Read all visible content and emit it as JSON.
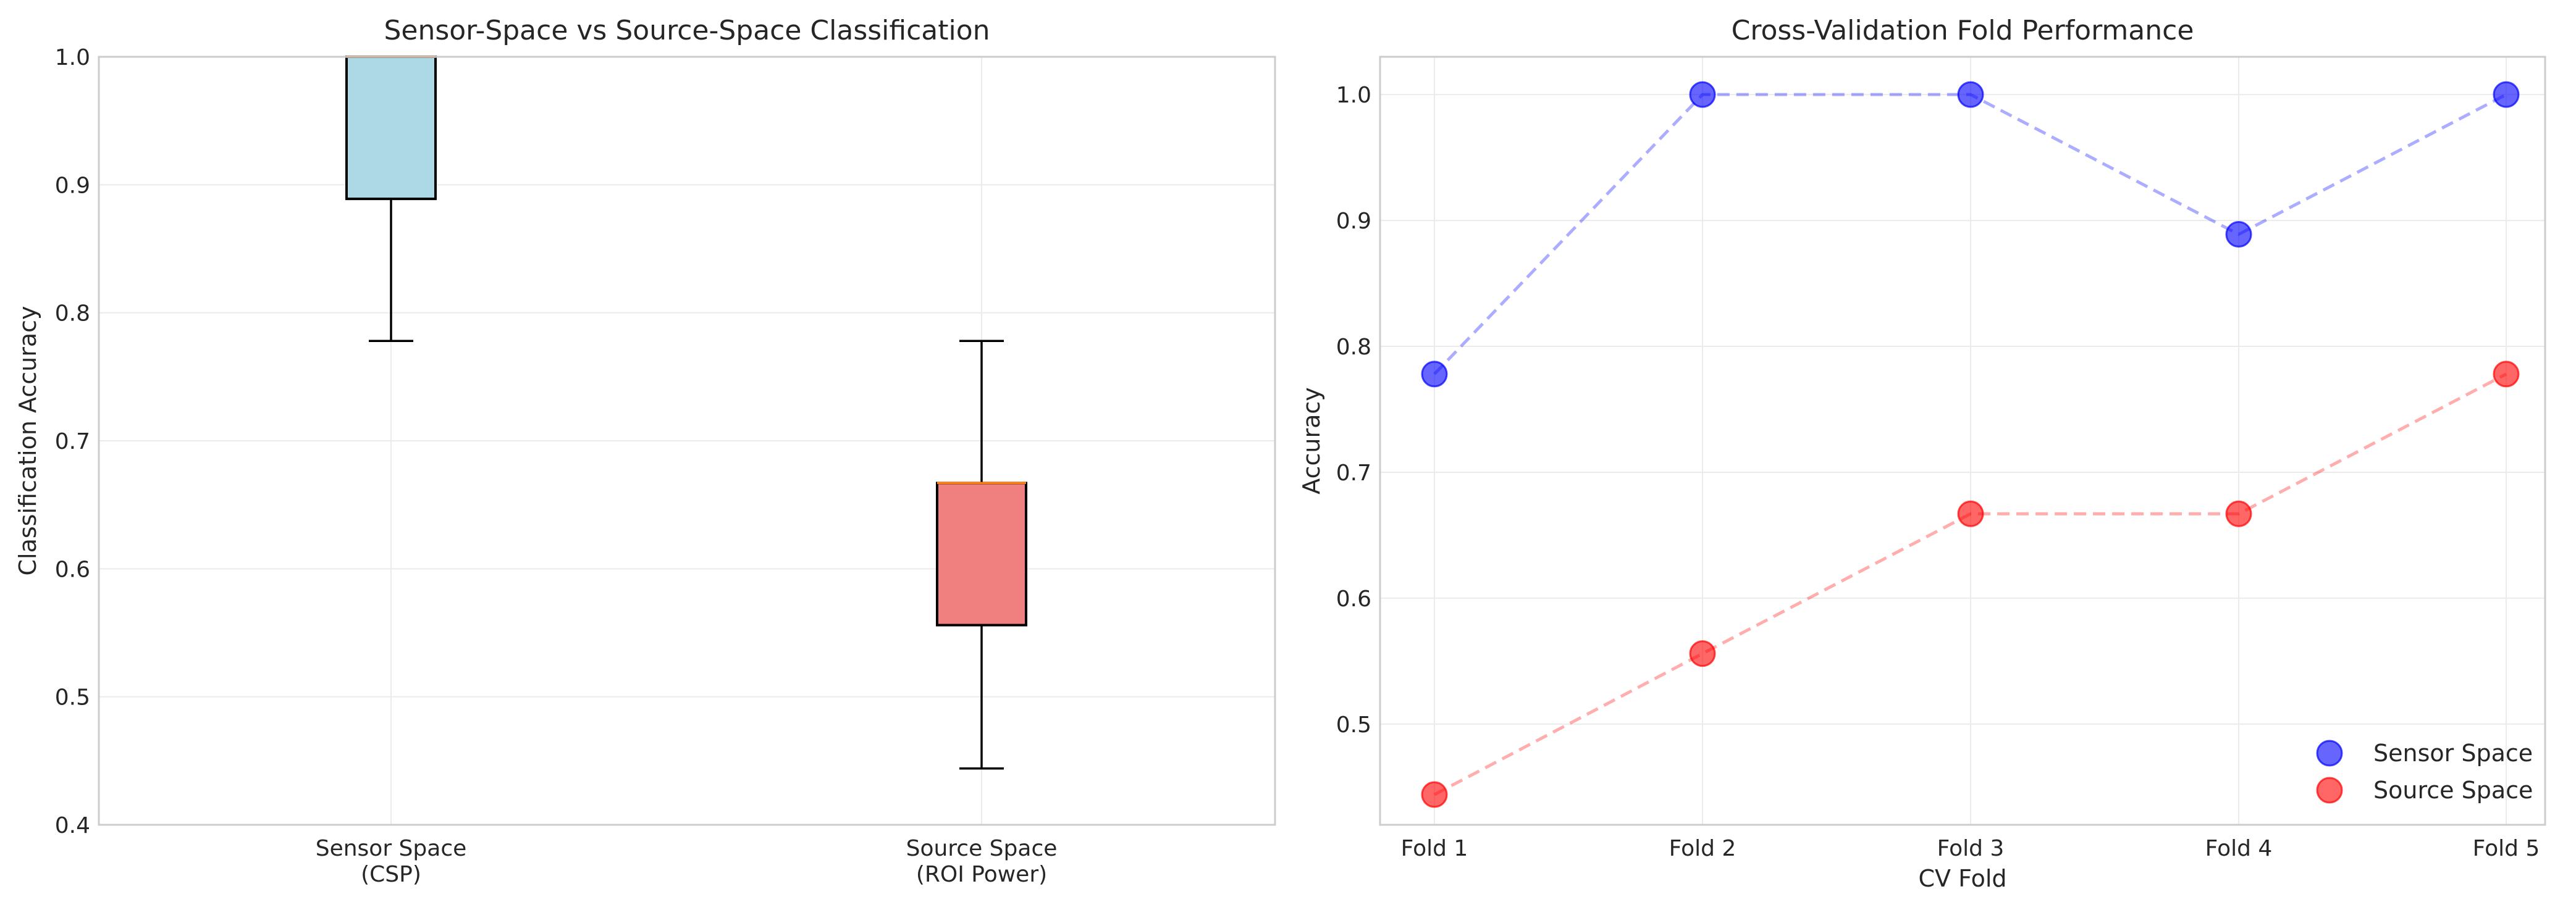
{
  "chart_data": [
    {
      "type": "box",
      "title": "Sensor-Space vs Source-Space Classification",
      "xlabel": "",
      "ylabel": "Classification Accuracy",
      "ylim": [
        0.4,
        1.0
      ],
      "yticks": [
        "0.4",
        "0.5",
        "0.6",
        "0.7",
        "0.8",
        "0.9",
        "1.0"
      ],
      "grid": true,
      "categories": [
        {
          "label_line1": "Sensor Space",
          "label_line2": "(CSP)",
          "color": "#add8e6",
          "median_color": "#ff7f0e",
          "whisker_low": 0.778,
          "q1": 0.889,
          "median": 1.0,
          "q3": 1.0,
          "whisker_high": 1.0
        },
        {
          "label_line1": "Source Space",
          "label_line2": "(ROI Power)",
          "color": "#f08080",
          "median_color": "#ff7f0e",
          "whisker_low": 0.444,
          "q1": 0.556,
          "median": 0.667,
          "q3": 0.667,
          "whisker_high": 0.778
        }
      ]
    },
    {
      "type": "scatter",
      "title": "Cross-Validation Fold Performance",
      "xlabel": "CV Fold",
      "ylabel": "Accuracy",
      "ylim": [
        0.42,
        1.03
      ],
      "yticks": [
        "0.5",
        "0.6",
        "0.7",
        "0.8",
        "0.9",
        "1.0"
      ],
      "categories": [
        "Fold 1",
        "Fold 2",
        "Fold 3",
        "Fold 4",
        "Fold 5"
      ],
      "grid": true,
      "legend_position": "lower-right",
      "series": [
        {
          "name": "Sensor Space",
          "color": "#0000ff",
          "values": [
            0.778,
            1.0,
            1.0,
            0.889,
            1.0
          ]
        },
        {
          "name": "Source Space",
          "color": "#ff0000",
          "values": [
            0.444,
            0.556,
            0.667,
            0.667,
            0.778
          ]
        }
      ]
    }
  ]
}
